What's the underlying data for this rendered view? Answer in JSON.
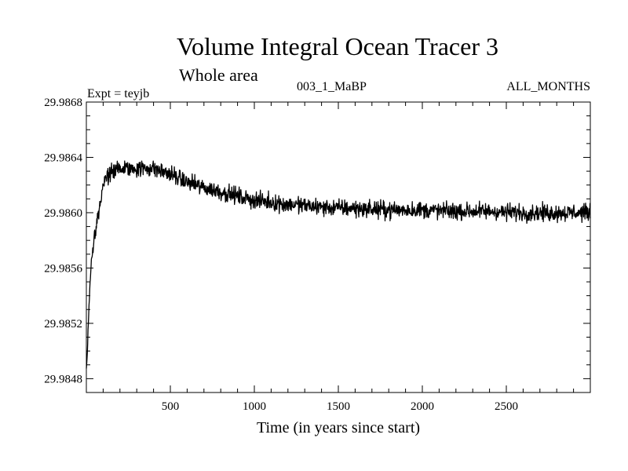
{
  "chart_data": {
    "type": "line",
    "title": "Volume Integral Ocean Tracer 3",
    "subtitle": "Whole area",
    "annotations": {
      "experiment": "Expt = teyjb",
      "run": "003_1_MaBP",
      "months": "ALL_MONTHS"
    },
    "xlabel": "Time (in years since start)",
    "ylabel": "",
    "xlim": [
      0,
      3000
    ],
    "ylim": [
      29.9847,
      29.9868
    ],
    "x_ticks": [
      500,
      1000,
      1500,
      2000,
      2500
    ],
    "x_tick_labels": [
      "500",
      "1000",
      "1500",
      "2000",
      "2500"
    ],
    "y_ticks": [
      29.9848,
      29.9852,
      29.9856,
      29.986,
      29.9864,
      29.9868
    ],
    "y_tick_labels": [
      "29.9848",
      "29.9852",
      "29.9856",
      "29.9860",
      "29.9864",
      "29.9868"
    ],
    "grid": false,
    "series": [
      {
        "name": "Volume Integral Ocean Tracer 3",
        "color": "#000000",
        "x": [
          0,
          5,
          10,
          20,
          30,
          40,
          50,
          60,
          70,
          80,
          90,
          100,
          120,
          140,
          160,
          180,
          200,
          250,
          300,
          350,
          400,
          450,
          500,
          550,
          600,
          700,
          800,
          900,
          1000,
          1200,
          1400,
          1600,
          1800,
          2000,
          2200,
          2400,
          2600,
          2800,
          3000
        ],
        "values": [
          29.98488,
          29.98495,
          29.98515,
          29.98545,
          29.98565,
          29.98575,
          29.98585,
          29.98592,
          29.98598,
          29.98605,
          29.98612,
          29.9862,
          29.98625,
          29.98628,
          29.9863,
          29.98631,
          29.98632,
          29.98632,
          29.98632,
          29.98632,
          29.98632,
          29.9863,
          29.98628,
          29.98625,
          29.98622,
          29.98618,
          29.98615,
          29.98612,
          29.98609,
          29.98606,
          29.98604,
          29.98603,
          29.98602,
          29.98602,
          29.98601,
          29.98601,
          29.986,
          29.986,
          29.986
        ],
        "noise_amplitude": 9e-05
      }
    ]
  }
}
